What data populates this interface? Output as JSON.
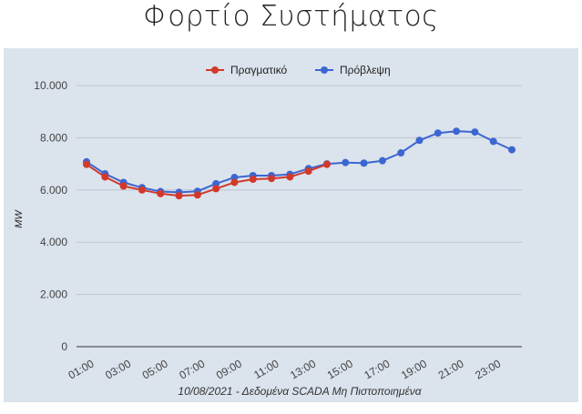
{
  "page": {
    "title": "Φορτίο Συστήματος"
  },
  "chart_data": {
    "type": "line",
    "xlabel": "10/08/2021 - Δεδομένα SCADA Μη Πιστοποιημένα",
    "ylabel": "MW",
    "ylim": [
      0,
      10000
    ],
    "yticks": [
      "0",
      "2.000",
      "4.000",
      "6.000",
      "8.000",
      "10.000"
    ],
    "x": [
      "01:00",
      "02:00",
      "03:00",
      "04:00",
      "05:00",
      "06:00",
      "07:00",
      "08:00",
      "09:00",
      "10:00",
      "11:00",
      "12:00",
      "13:00",
      "14:00",
      "15:00",
      "16:00",
      "17:00",
      "18:00",
      "19:00",
      "20:00",
      "21:00",
      "22:00",
      "23:00",
      "24:00"
    ],
    "xticks": [
      "01:00",
      "03:00",
      "05:00",
      "07:00",
      "09:00",
      "11:00",
      "13:00",
      "15:00",
      "17:00",
      "19:00",
      "21:00",
      "23:00"
    ],
    "grid": true,
    "legend_position": "top",
    "series": [
      {
        "name": "Πραγματικό",
        "color": "#d2392b",
        "values": [
          6980,
          6500,
          6150,
          6000,
          5860,
          5780,
          5810,
          6050,
          6290,
          6410,
          6440,
          6500,
          6720,
          6980,
          null,
          null,
          null,
          null,
          null,
          null,
          null,
          null,
          null,
          null
        ]
      },
      {
        "name": "Πρόβλεψη",
        "color": "#3c66d1",
        "values": [
          7080,
          6620,
          6290,
          6090,
          5940,
          5910,
          5950,
          6240,
          6480,
          6550,
          6550,
          6600,
          6820,
          7000,
          7050,
          7030,
          7120,
          7420,
          7900,
          8180,
          8250,
          8220,
          7860,
          7540
        ]
      }
    ]
  }
}
